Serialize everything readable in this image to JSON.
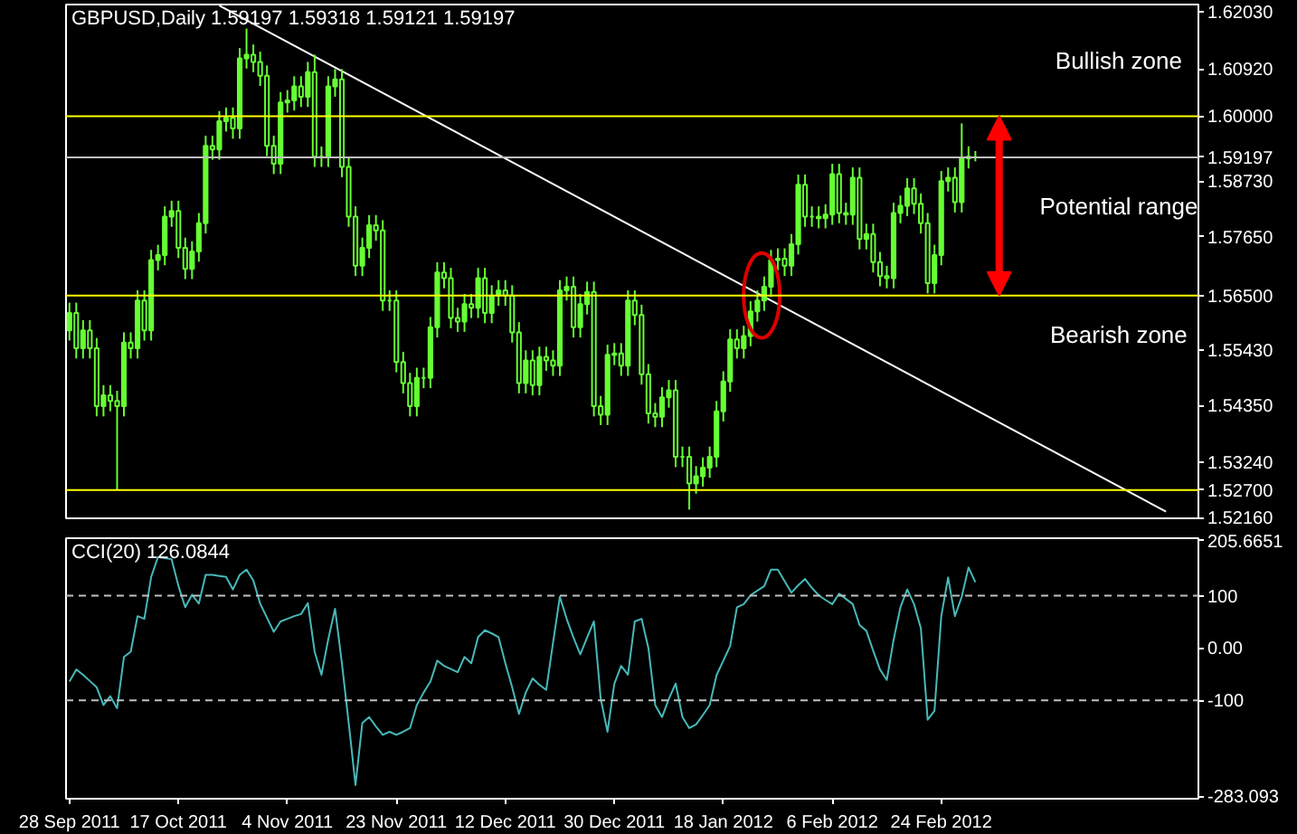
{
  "chart_data": [
    {
      "type": "candlestick",
      "title": "GBPUSD,Daily  1.59197 1.59318 1.59121 1.59197",
      "color": "#66ff33",
      "categories": [
        null,
        null,
        null,
        null,
        null,
        null,
        null,
        null,
        null,
        null,
        null,
        null,
        null,
        null,
        null,
        null,
        null,
        null,
        null,
        null,
        null,
        null,
        null,
        null,
        null,
        null,
        null,
        null,
        null,
        null,
        null,
        null,
        null,
        null,
        null,
        null,
        null,
        null,
        null,
        null,
        null,
        null,
        null,
        null,
        null,
        null,
        null,
        null,
        null,
        null,
        null,
        null,
        null,
        null,
        null,
        null,
        null,
        null,
        null,
        null,
        null,
        null,
        null,
        null,
        null,
        null,
        null,
        null,
        null,
        null,
        null,
        null,
        null,
        null,
        null,
        null,
        null,
        null,
        null,
        null,
        null,
        null,
        null,
        null,
        null,
        null,
        null,
        null,
        null,
        null,
        null,
        null,
        null,
        null,
        null,
        null,
        null,
        null,
        null,
        null,
        null,
        null,
        null,
        null,
        null,
        null,
        null,
        null,
        null,
        null,
        null,
        null,
        null,
        null,
        null,
        null,
        null,
        null,
        null,
        null,
        null,
        null,
        null,
        null,
        null,
        null,
        null,
        null,
        null,
        null,
        null,
        null,
        null,
        null,
        null,
        null,
        null,
        null,
        null,
        null,
        null,
        null,
        null,
        null,
        null,
        null,
        null,
        null,
        null,
        null,
        null,
        null,
        null,
        null,
        null,
        null,
        null,
        null,
        null,
        null,
        null,
        null,
        null,
        null,
        null,
        null
      ],
      "ohlc": [
        [
          1.5582,
          1.5636,
          1.5562,
          1.5616
        ],
        [
          1.5616,
          1.5636,
          1.5527,
          1.5547
        ],
        [
          1.5547,
          1.5602,
          1.5527,
          1.5582
        ],
        [
          1.5582,
          1.5602,
          1.5527,
          1.5547
        ],
        [
          1.5547,
          1.5567,
          1.5414,
          1.5434
        ],
        [
          1.5434,
          1.5475,
          1.5414,
          1.5455
        ],
        [
          1.5455,
          1.5475,
          1.5424,
          1.5444
        ],
        [
          1.5444,
          1.5464,
          1.527,
          1.5434
        ],
        [
          1.5434,
          1.5578,
          1.5414,
          1.5558
        ],
        [
          1.5558,
          1.5578,
          1.5527,
          1.5547
        ],
        [
          1.5547,
          1.566,
          1.5527,
          1.564
        ],
        [
          1.564,
          1.566,
          1.5562,
          1.5582
        ],
        [
          1.5582,
          1.5739,
          1.5562,
          1.5719
        ],
        [
          1.5719,
          1.5749,
          1.5699,
          1.5729
        ],
        [
          1.5729,
          1.5824,
          1.5709,
          1.5804
        ],
        [
          1.5804,
          1.5835,
          1.5784,
          1.5815
        ],
        [
          1.5815,
          1.5835,
          1.5723,
          1.5743
        ],
        [
          1.5743,
          1.5763,
          1.5682,
          1.5702
        ],
        [
          1.5702,
          1.5756,
          1.5682,
          1.5736
        ],
        [
          1.5736,
          1.5811,
          1.5716,
          1.5791
        ],
        [
          1.5791,
          1.5962,
          1.5771,
          1.5942
        ],
        [
          1.5942,
          1.5962,
          1.5915,
          1.5935
        ],
        [
          1.5935,
          1.601,
          1.5915,
          1.599
        ],
        [
          1.599,
          1.6017,
          1.597,
          1.5997
        ],
        [
          1.5997,
          1.6017,
          1.5956,
          1.5976
        ],
        [
          1.5976,
          1.6133,
          1.5956,
          1.6113
        ],
        [
          1.6113,
          1.6171,
          1.6093,
          1.612
        ],
        [
          1.612,
          1.614,
          1.6086,
          1.6106
        ],
        [
          1.6106,
          1.6126,
          1.6059,
          1.6079
        ],
        [
          1.6079,
          1.6099,
          1.5922,
          1.5942
        ],
        [
          1.5942,
          1.5962,
          1.5887,
          1.5907
        ],
        [
          1.5907,
          1.6047,
          1.5887,
          1.6027
        ],
        [
          1.6027,
          1.6051,
          1.6007,
          1.6031
        ],
        [
          1.6031,
          1.6078,
          1.6011,
          1.6058
        ],
        [
          1.6058,
          1.6078,
          1.6018,
          1.6038
        ],
        [
          1.6038,
          1.6106,
          1.6018,
          1.6086
        ],
        [
          1.6086,
          1.612,
          1.5901,
          1.5921
        ],
        [
          1.5921,
          1.5941,
          1.5901,
          1.5921
        ],
        [
          1.5921,
          1.6078,
          1.5901,
          1.6058
        ],
        [
          1.6058,
          1.6092,
          1.6038,
          1.6072
        ],
        [
          1.6072,
          1.6092,
          1.5881,
          1.5901
        ],
        [
          1.5901,
          1.5921,
          1.5784,
          1.5804
        ],
        [
          1.5804,
          1.5824,
          1.5688,
          1.5708
        ],
        [
          1.5708,
          1.5763,
          1.5688,
          1.5743
        ],
        [
          1.5743,
          1.5807,
          1.5723,
          1.5787
        ],
        [
          1.5787,
          1.5807,
          1.5757,
          1.5777
        ],
        [
          1.5777,
          1.5797,
          1.562,
          1.564
        ],
        [
          1.564,
          1.566,
          1.562,
          1.564
        ],
        [
          1.564,
          1.566,
          1.55,
          1.552
        ],
        [
          1.552,
          1.554,
          1.5459,
          1.5479
        ],
        [
          1.5479,
          1.5499,
          1.5414,
          1.5434
        ],
        [
          1.5434,
          1.5509,
          1.5414,
          1.5489
        ],
        [
          1.5489,
          1.5509,
          1.5469,
          1.5489
        ],
        [
          1.5489,
          1.5608,
          1.5469,
          1.5588
        ],
        [
          1.5588,
          1.5715,
          1.5568,
          1.5695
        ],
        [
          1.5695,
          1.5715,
          1.5664,
          1.5684
        ],
        [
          1.5684,
          1.5704,
          1.5586,
          1.5606
        ],
        [
          1.5606,
          1.5626,
          1.5579,
          1.5599
        ],
        [
          1.5599,
          1.5653,
          1.5579,
          1.5633
        ],
        [
          1.5633,
          1.5653,
          1.5606,
          1.5626
        ],
        [
          1.5626,
          1.5704,
          1.5606,
          1.5684
        ],
        [
          1.5684,
          1.5704,
          1.5596,
          1.5616
        ],
        [
          1.5616,
          1.567,
          1.5596,
          1.565
        ],
        [
          1.565,
          1.568,
          1.563,
          1.566
        ],
        [
          1.566,
          1.568,
          1.563,
          1.565
        ],
        [
          1.565,
          1.567,
          1.5558,
          1.5578
        ],
        [
          1.5578,
          1.5598,
          1.5459,
          1.5479
        ],
        [
          1.5479,
          1.5543,
          1.5459,
          1.5523
        ],
        [
          1.5523,
          1.5543,
          1.5455,
          1.5475
        ],
        [
          1.5475,
          1.555,
          1.5455,
          1.553
        ],
        [
          1.553,
          1.555,
          1.5503,
          1.5523
        ],
        [
          1.5523,
          1.5543,
          1.5493,
          1.5513
        ],
        [
          1.5513,
          1.568,
          1.5493,
          1.566
        ],
        [
          1.566,
          1.5687,
          1.564,
          1.5667
        ],
        [
          1.5667,
          1.5687,
          1.5568,
          1.5588
        ],
        [
          1.5588,
          1.5653,
          1.5568,
          1.5633
        ],
        [
          1.5633,
          1.5677,
          1.5613,
          1.5657
        ],
        [
          1.5657,
          1.5677,
          1.5414,
          1.5434
        ],
        [
          1.5434,
          1.5454,
          1.5397,
          1.5417
        ],
        [
          1.5417,
          1.5554,
          1.5397,
          1.5534
        ],
        [
          1.5534,
          1.5557,
          1.5514,
          1.5537
        ],
        [
          1.5537,
          1.5557,
          1.5493,
          1.5513
        ],
        [
          1.5513,
          1.566,
          1.5493,
          1.564
        ],
        [
          1.564,
          1.566,
          1.5592,
          1.5612
        ],
        [
          1.5612,
          1.5632,
          1.5476,
          1.5496
        ],
        [
          1.5496,
          1.5516,
          1.54,
          1.542
        ],
        [
          1.542,
          1.544,
          1.5393,
          1.5413
        ],
        [
          1.5413,
          1.5471,
          1.5393,
          1.5451
        ],
        [
          1.5451,
          1.5485,
          1.5431,
          1.5465
        ],
        [
          1.5465,
          1.5485,
          1.5315,
          1.5335
        ],
        [
          1.5335,
          1.5355,
          1.5315,
          1.5335
        ],
        [
          1.5335,
          1.5355,
          1.5232,
          1.5283
        ],
        [
          1.5283,
          1.5317,
          1.5263,
          1.5297
        ],
        [
          1.5297,
          1.5334,
          1.5277,
          1.5314
        ],
        [
          1.5314,
          1.5355,
          1.5294,
          1.5335
        ],
        [
          1.5335,
          1.5444,
          1.5315,
          1.5424
        ],
        [
          1.5424,
          1.5502,
          1.5404,
          1.5482
        ],
        [
          1.5482,
          1.5584,
          1.5462,
          1.5564
        ],
        [
          1.5564,
          1.5584,
          1.5527,
          1.5547
        ],
        [
          1.5547,
          1.5591,
          1.5527,
          1.5571
        ],
        [
          1.5571,
          1.5639,
          1.5551,
          1.5619
        ],
        [
          1.5619,
          1.566,
          1.5599,
          1.564
        ],
        [
          1.564,
          1.5687,
          1.562,
          1.5667
        ],
        [
          1.5667,
          1.5739,
          1.5647,
          1.5719
        ],
        [
          1.5719,
          1.5742,
          1.5699,
          1.5722
        ],
        [
          1.5722,
          1.5742,
          1.5688,
          1.5708
        ],
        [
          1.5708,
          1.577,
          1.5688,
          1.575
        ],
        [
          1.575,
          1.5886,
          1.573,
          1.5866
        ],
        [
          1.5866,
          1.5886,
          1.5784,
          1.5804
        ],
        [
          1.5804,
          1.5824,
          1.5784,
          1.5804
        ],
        [
          1.5804,
          1.5824,
          1.5781,
          1.5801
        ],
        [
          1.5801,
          1.5828,
          1.5781,
          1.5808
        ],
        [
          1.5808,
          1.5907,
          1.5788,
          1.5887
        ],
        [
          1.5887,
          1.5907,
          1.5791,
          1.5811
        ],
        [
          1.5811,
          1.5831,
          1.5788,
          1.5808
        ],
        [
          1.5808,
          1.59,
          1.5788,
          1.588
        ],
        [
          1.588,
          1.59,
          1.574,
          1.576
        ],
        [
          1.576,
          1.579,
          1.574,
          1.577
        ],
        [
          1.577,
          1.579,
          1.5695,
          1.5715
        ],
        [
          1.5715,
          1.5735,
          1.5668,
          1.5688
        ],
        [
          1.5688,
          1.5708,
          1.5664,
          1.5684
        ],
        [
          1.5684,
          1.5831,
          1.5664,
          1.5811
        ],
        [
          1.5811,
          1.5845,
          1.5791,
          1.5825
        ],
        [
          1.5825,
          1.5879,
          1.5805,
          1.5859
        ],
        [
          1.5859,
          1.5879,
          1.5809,
          1.5829
        ],
        [
          1.5829,
          1.5849,
          1.5771,
          1.5791
        ],
        [
          1.5791,
          1.5811,
          1.5654,
          1.5674
        ],
        [
          1.5674,
          1.5749,
          1.5654,
          1.5729
        ],
        [
          1.5729,
          1.5893,
          1.5709,
          1.5873
        ],
        [
          1.5873,
          1.59,
          1.5853,
          1.588
        ],
        [
          1.588,
          1.59,
          1.5812,
          1.5832
        ],
        [
          1.5832,
          1.5986,
          1.5812,
          1.5918
        ],
        [
          1.5918,
          1.5941,
          1.5898,
          1.5921
        ],
        [
          1.592,
          1.5932,
          1.5912,
          1.592
        ],
        null,
        null,
        null,
        null,
        null,
        null,
        null,
        null,
        null,
        null,
        null,
        null,
        null,
        null,
        null,
        null,
        null,
        null,
        null,
        null,
        null,
        null,
        null,
        null,
        null,
        null,
        null,
        null,
        null,
        null,
        null,
        null
      ],
      "series": [
        {
          "type": "line",
          "color": "#ffffff",
          "values": [
            null,
            null,
            null,
            null,
            null,
            null,
            null,
            null,
            null,
            null,
            null,
            null,
            null,
            null,
            null,
            null,
            null,
            null,
            null,
            null,
            null,
            null,
            1.6216,
            null,
            null,
            null,
            null,
            null,
            null,
            null,
            null,
            null,
            null,
            null,
            null,
            null,
            null,
            null,
            null,
            null,
            null,
            null,
            null,
            null,
            null,
            null,
            null,
            null,
            null,
            null,
            null,
            null,
            null,
            null,
            null,
            null,
            null,
            null,
            null,
            null,
            null,
            null,
            null,
            null,
            null,
            null,
            null,
            null,
            null,
            null,
            null,
            null,
            null,
            null,
            null,
            null,
            null,
            null,
            null,
            null,
            null,
            null,
            null,
            null,
            null,
            null,
            null,
            null,
            null,
            null,
            null,
            null,
            null,
            null,
            null,
            null,
            null,
            null,
            null,
            null,
            null,
            null,
            null,
            null,
            null,
            null,
            null,
            null,
            null,
            null,
            null,
            null,
            null,
            null,
            null,
            null,
            null,
            null,
            null,
            null,
            null,
            null,
            null,
            null,
            null,
            null,
            null,
            null,
            null,
            null,
            null,
            null,
            null,
            null,
            null,
            null,
            null,
            null,
            null,
            null,
            null,
            null,
            null,
            null,
            null,
            null,
            null,
            null,
            null,
            null,
            null,
            null,
            null,
            null,
            null,
            null,
            null,
            null,
            null,
            null,
            null,
            1.5228,
            null,
            null,
            null,
            null
          ]
        }
      ],
      "ylim": [
        1.5215,
        1.6218
      ],
      "yticks": [
        {
          "value": 1.6203,
          "label": "1.62030"
        },
        {
          "value": 1.6092,
          "label": "1.60920"
        },
        {
          "value": 1.5873,
          "label": "1.58730"
        },
        {
          "value": 1.5765,
          "label": "1.57650"
        },
        {
          "value": 1.5543,
          "label": "1.55430"
        },
        {
          "value": 1.5435,
          "label": "1.54350"
        },
        {
          "value": 1.5324,
          "label": "1.53240"
        },
        {
          "value": 1.5216,
          "label": "1.52160"
        }
      ],
      "tick_labels": "y",
      "ref_lines": [
        {
          "axis": "y",
          "value": 1.6,
          "label": "1.60000",
          "color": "#ffff00"
        },
        {
          "axis": "y",
          "value": 1.59197,
          "label": "1.59197",
          "color": "#c0c0c0"
        },
        {
          "axis": "y",
          "value": 1.565,
          "label": "1.56500",
          "color": "#ffff00"
        },
        {
          "axis": "y",
          "value": 1.527,
          "label": "1.52700",
          "color": "#ffff00"
        }
      ],
      "annotations": [
        "Bullish zone",
        "Potential range",
        "Bearish zone"
      ]
    },
    {
      "type": "line",
      "title": "CCI(20) 126.0844",
      "color": "#48b8b8",
      "categories": [
        "28 Sep 2011",
        null,
        null,
        null,
        null,
        null,
        null,
        null,
        null,
        null,
        null,
        null,
        null,
        null,
        null,
        null,
        "17 Oct 2011",
        null,
        null,
        null,
        null,
        null,
        null,
        null,
        null,
        null,
        null,
        null,
        null,
        null,
        null,
        null,
        "4 Nov 2011",
        null,
        null,
        null,
        null,
        null,
        null,
        null,
        null,
        null,
        null,
        null,
        null,
        null,
        null,
        null,
        "23 Nov 2011",
        null,
        null,
        null,
        null,
        null,
        null,
        null,
        null,
        null,
        null,
        null,
        null,
        null,
        null,
        null,
        "12 Dec 2011",
        null,
        null,
        null,
        null,
        null,
        null,
        null,
        null,
        null,
        null,
        null,
        null,
        null,
        null,
        null,
        "30 Dec 2011",
        null,
        null,
        null,
        null,
        null,
        null,
        null,
        null,
        null,
        null,
        null,
        null,
        null,
        null,
        null,
        "18 Jan 2012",
        null,
        null,
        null,
        null,
        null,
        null,
        null,
        null,
        null,
        null,
        null,
        null,
        null,
        null,
        null,
        "6 Feb 2012",
        null,
        null,
        null,
        null,
        null,
        null,
        null,
        null,
        null,
        null,
        null,
        null,
        null,
        null,
        null,
        "24 Feb 2012",
        null,
        null,
        null,
        null,
        null,
        null,
        null,
        null,
        null,
        null,
        null,
        null,
        null,
        null,
        null,
        null,
        null,
        null,
        null,
        null,
        null,
        null,
        null,
        null,
        null,
        null,
        null,
        null,
        null,
        null,
        null,
        null,
        null,
        null,
        null,
        null,
        null
      ],
      "values": [
        -64,
        -41,
        -51,
        -63,
        -75,
        -109,
        -92,
        -115,
        -17,
        -7,
        61,
        56,
        136,
        174,
        172,
        170,
        119,
        78,
        102,
        85,
        140,
        140,
        138,
        136,
        112,
        140,
        150,
        129,
        85,
        58,
        31,
        51,
        56,
        61,
        65,
        86,
        -7,
        -51,
        17,
        75,
        -29,
        -143,
        -262,
        -143,
        -132,
        -150,
        -166,
        -160,
        -166,
        -160,
        -153,
        -109,
        -85,
        -64,
        -24,
        -34,
        -40,
        -46,
        -17,
        -29,
        21,
        34,
        28,
        21,
        -29,
        -75,
        -126,
        -85,
        -58,
        -70,
        -80,
        10,
        98,
        56,
        20,
        -12,
        20,
        51,
        -97,
        -160,
        -68,
        -34,
        -51,
        51,
        56,
        0,
        -109,
        -132,
        -97,
        -68,
        -132,
        -153,
        -146,
        -128,
        -109,
        -52,
        -24,
        4,
        78,
        84,
        101,
        110,
        118,
        150,
        150,
        128,
        106,
        120,
        132,
        115,
        101,
        92,
        84,
        104,
        94,
        84,
        44,
        33,
        -5,
        -41,
        -61,
        16,
        78,
        112,
        84,
        38,
        -137,
        -120,
        61,
        135,
        61,
        98,
        154,
        126,
        null,
        null,
        null,
        null,
        null,
        null,
        null,
        null,
        null,
        null,
        null,
        null,
        null,
        null,
        null,
        null,
        null,
        null,
        null,
        null,
        null,
        null,
        null,
        null,
        null,
        null,
        null,
        null,
        null,
        null,
        null,
        null
      ],
      "ylim": [
        -288,
        210
      ],
      "yticks": [
        205.6651,
        100,
        {
          "value": 0,
          "label": "0.00"
        },
        -100,
        -283.093
      ],
      "ref_lines": [
        {
          "axis": "y",
          "value": 100,
          "color": "#c0c0c0",
          "line_style": "dashed"
        },
        {
          "axis": "y",
          "value": -100,
          "color": "#c0c0c0",
          "line_style": "dashed"
        }
      ]
    }
  ]
}
